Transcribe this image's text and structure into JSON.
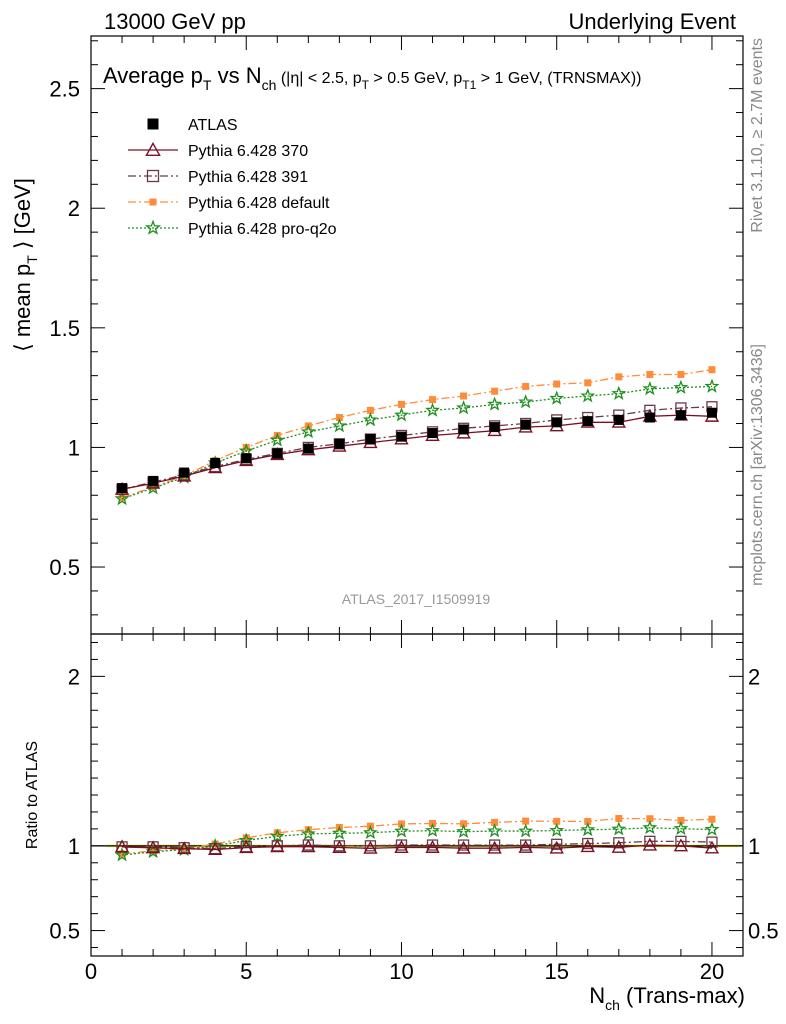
{
  "header": {
    "left": "13000 GeV pp",
    "right": "Underlying Event"
  },
  "side_labels": {
    "rivet": "Rivet 3.1.10, ≥ 2.7M events",
    "mcplots": "mcplots.cern.ch [arXiv:1306.3436]"
  },
  "chart_data": {
    "type": "line",
    "title": "Average pT vs Nch (|η| < 2.5, pT > 0.5 GeV, pT1 > 1 GeV, (TRNSMAX))",
    "analysis_label": "ATLAS_2017_I1509919",
    "xlabel": "Nch (Trans-max)",
    "ylabel": "⟨ mean pT ⟩ [GeV]",
    "ratio_ylabel": "Ratio to ATLAS",
    "xlim": [
      0,
      21
    ],
    "ylim": [
      0.22,
      2.72
    ],
    "ratio_ylim": [
      0.35,
      2.25
    ],
    "x_ticks": [
      0,
      5,
      10,
      15,
      20
    ],
    "y_ticks": [
      0.5,
      1,
      1.5,
      2,
      2.5
    ],
    "ratio_y_ticks": [
      0.5,
      1,
      2
    ],
    "x_tick_labels": [
      "0",
      "5",
      "10",
      "15",
      "20"
    ],
    "y_tick_labels": [
      "0.5",
      "1",
      "1.5",
      "2",
      "2.5"
    ],
    "ratio_y_tick_labels": [
      "0.5",
      "1",
      "2"
    ],
    "legend_placement": "top-left",
    "x": [
      1,
      2,
      3,
      4,
      5,
      6,
      7,
      8,
      9,
      10,
      11,
      12,
      13,
      14,
      15,
      16,
      17,
      18,
      19,
      20
    ],
    "series": [
      {
        "name": "ATLAS",
        "color": "#000000",
        "marker": "filled-square",
        "line": "none",
        "values": [
          0.83,
          0.86,
          0.895,
          0.935,
          0.955,
          0.975,
          0.995,
          1.015,
          1.035,
          1.045,
          1.06,
          1.075,
          1.085,
          1.095,
          1.105,
          1.11,
          1.115,
          1.125,
          1.135,
          1.145
        ]
      },
      {
        "name": "Pythia 6.428 370",
        "color": "#7a1024",
        "marker": "open-triangle",
        "line": "solid",
        "values": [
          0.825,
          0.85,
          0.88,
          0.915,
          0.945,
          0.97,
          0.99,
          1.005,
          1.02,
          1.035,
          1.05,
          1.06,
          1.07,
          1.085,
          1.09,
          1.105,
          1.105,
          1.13,
          1.135,
          1.13
        ]
      },
      {
        "name": "Pythia 6.428 391",
        "color": "#6b3a4a",
        "marker": "open-square",
        "line": "dashdot",
        "values": [
          0.825,
          0.855,
          0.885,
          0.92,
          0.95,
          0.975,
          1.0,
          1.015,
          1.035,
          1.05,
          1.065,
          1.08,
          1.09,
          1.1,
          1.115,
          1.125,
          1.135,
          1.155,
          1.165,
          1.17
        ]
      },
      {
        "name": "Pythia 6.428 default",
        "color": "#ff8c3a",
        "marker": "filled-square",
        "line": "dashdot",
        "values": [
          0.79,
          0.835,
          0.88,
          0.945,
          1.0,
          1.05,
          1.09,
          1.125,
          1.155,
          1.18,
          1.2,
          1.215,
          1.235,
          1.255,
          1.265,
          1.27,
          1.295,
          1.305,
          1.305,
          1.325
        ]
      },
      {
        "name": "Pythia 6.428 pro-q2o",
        "color": "#1f8f1f",
        "marker": "open-star",
        "line": "dotted",
        "values": [
          0.785,
          0.83,
          0.875,
          0.935,
          0.985,
          1.03,
          1.065,
          1.09,
          1.115,
          1.135,
          1.155,
          1.165,
          1.18,
          1.19,
          1.205,
          1.215,
          1.225,
          1.245,
          1.25,
          1.255
        ]
      }
    ]
  }
}
